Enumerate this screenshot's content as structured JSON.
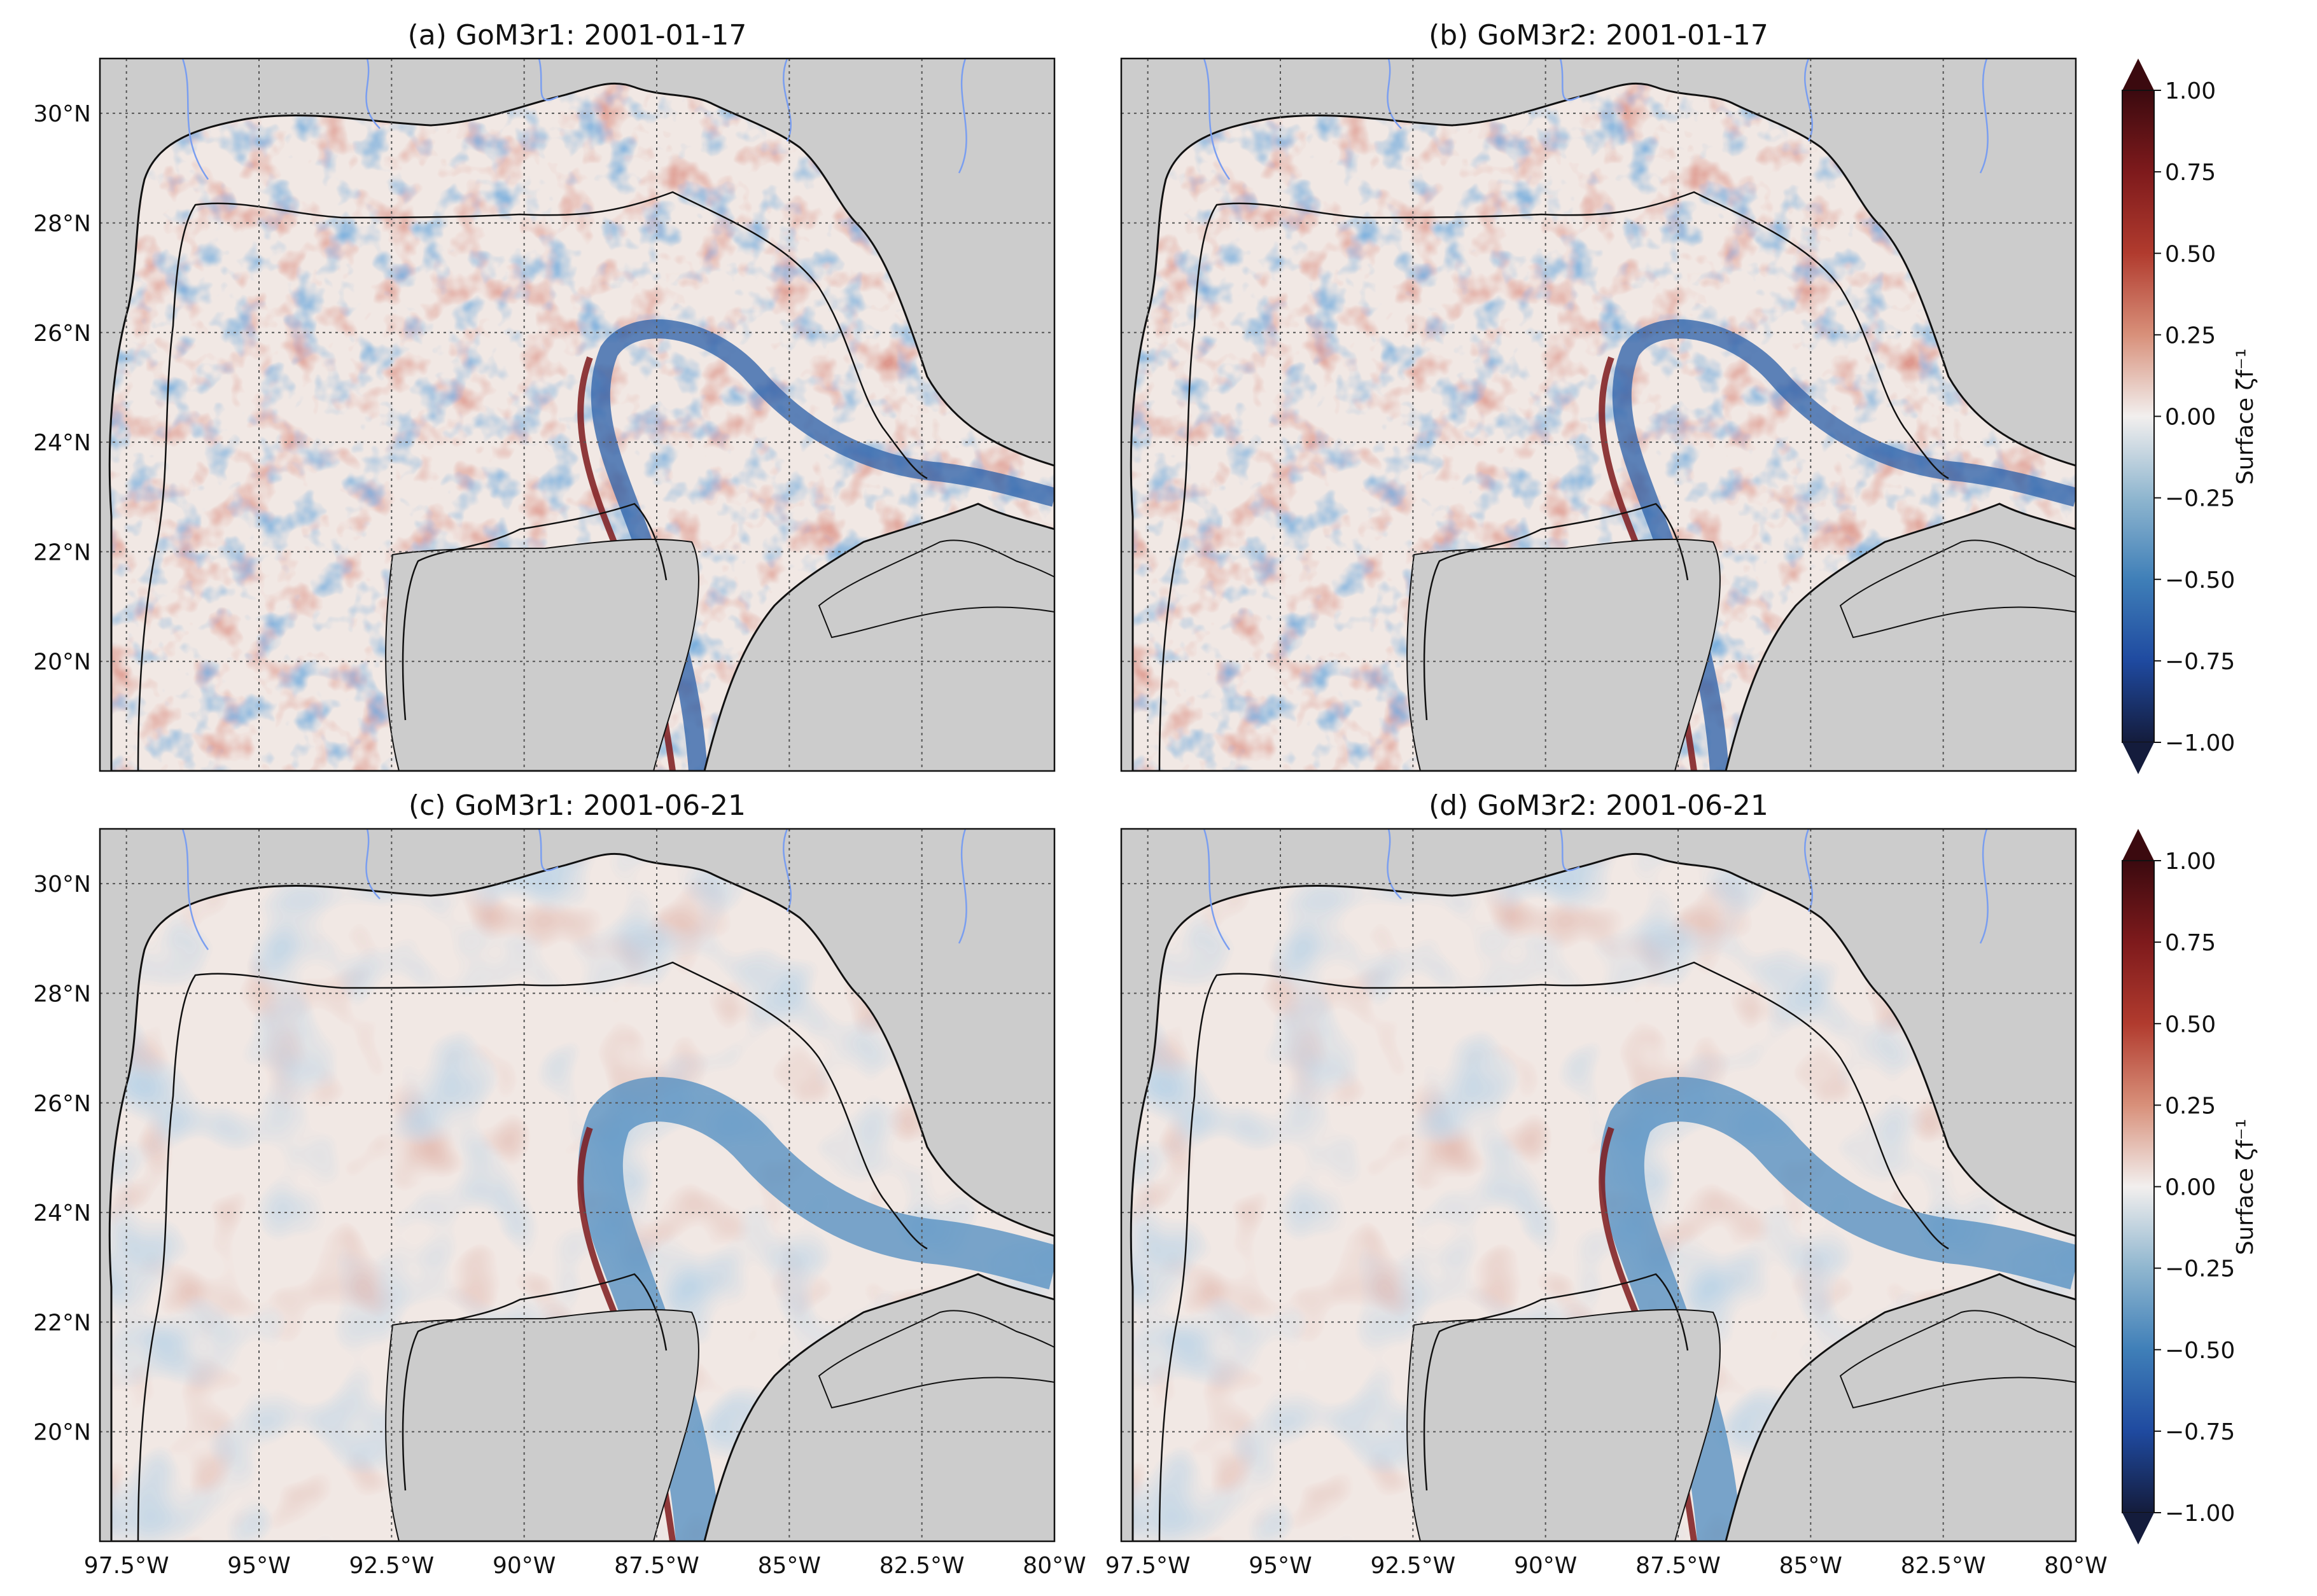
{
  "panels": [
    {
      "title": "(a) GoM3r1: 2001-01-17",
      "colorbar": false
    },
    {
      "title": "(b) GoM3r2: 2001-01-17",
      "colorbar": true
    },
    {
      "title": "(c) GoM3r1: 2001-06-21",
      "colorbar": false
    },
    {
      "title": "(d) GoM3r2: 2001-06-21",
      "colorbar": true
    }
  ],
  "axes": {
    "lon_ticks": [
      "97.5°W",
      "95°W",
      "92.5°W",
      "90°W",
      "87.5°W",
      "85°W",
      "82.5°W",
      "80°W"
    ],
    "lat_ticks": [
      "30°N",
      "28°N",
      "26°N",
      "24°N",
      "22°N",
      "20°N"
    ]
  },
  "colorbar": {
    "label": "Surface ζf⁻¹",
    "ticks": [
      "1.00",
      "0.75",
      "0.50",
      "0.25",
      "0.00",
      "−0.25",
      "−0.50",
      "−0.75",
      "−1.00"
    ],
    "colors": {
      "max": "#3b0a0f",
      "high": "#a52a24",
      "mid_high": "#d8907a",
      "zero": "#f2efee",
      "mid_low": "#8fb6cf",
      "low": "#2a64b0",
      "min": "#141c3c"
    }
  },
  "colors": {
    "land": "#cccccc",
    "river": "#7a9ef0",
    "coast": "#111111",
    "grid": "#555555",
    "ocean_base": "#f1e8e4"
  }
}
